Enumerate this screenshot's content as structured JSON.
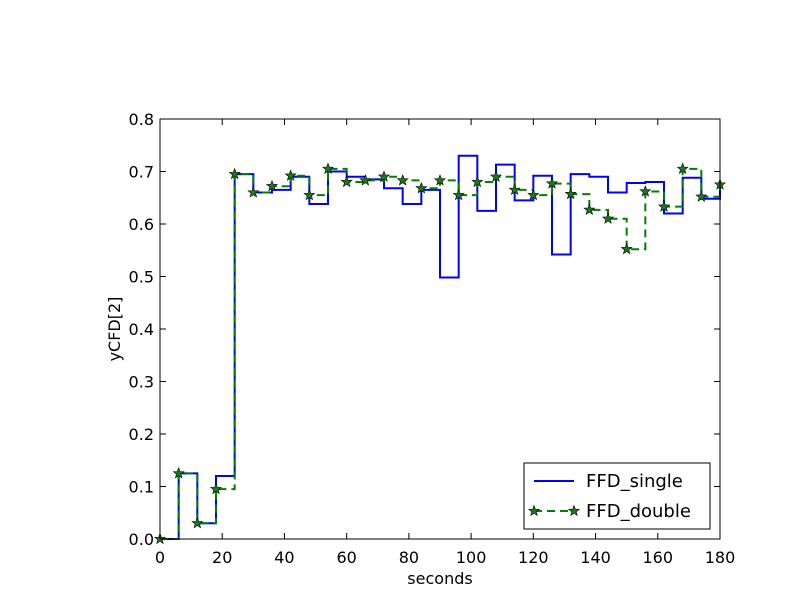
{
  "chart_data": {
    "type": "line",
    "drawstyle": "steps-post",
    "xlabel": "seconds",
    "ylabel": "yCFD[2]",
    "xlim": [
      0,
      180
    ],
    "ylim": [
      0.0,
      0.8
    ],
    "xticks": [
      "0",
      "20",
      "40",
      "60",
      "80",
      "100",
      "120",
      "140",
      "160",
      "180"
    ],
    "yticks": [
      "0.0",
      "0.1",
      "0.2",
      "0.3",
      "0.4",
      "0.5",
      "0.6",
      "0.7",
      "0.8"
    ],
    "grid": false,
    "legend_position": "lower-right",
    "x": [
      0,
      6,
      12,
      18,
      24,
      30,
      36,
      42,
      48,
      54,
      60,
      66,
      72,
      78,
      84,
      90,
      96,
      102,
      108,
      114,
      120,
      126,
      132,
      138,
      144,
      150,
      156,
      162,
      168,
      174,
      180
    ],
    "series": [
      {
        "name": "FFD_single",
        "color": "#0000ff",
        "linestyle": "solid",
        "marker": "none",
        "values": [
          0.0,
          0.125,
          0.03,
          0.12,
          0.695,
          0.66,
          0.665,
          0.69,
          0.638,
          0.7,
          0.69,
          0.685,
          0.668,
          0.638,
          0.665,
          0.498,
          0.73,
          0.625,
          0.713,
          0.645,
          0.692,
          0.542,
          0.695,
          0.69,
          0.66,
          0.678,
          0.68,
          0.62,
          0.688,
          0.648,
          0.675
        ]
      },
      {
        "name": "FFD_double",
        "color": "#008000",
        "linestyle": "dashed",
        "marker": "star",
        "values": [
          0.0,
          0.125,
          0.03,
          0.095,
          0.695,
          0.66,
          0.672,
          0.692,
          0.655,
          0.705,
          0.68,
          0.683,
          0.69,
          0.683,
          0.668,
          0.683,
          0.655,
          0.68,
          0.69,
          0.665,
          0.655,
          0.677,
          0.657,
          0.627,
          0.61,
          0.552,
          0.662,
          0.633,
          0.705,
          0.652,
          0.675
        ]
      }
    ]
  }
}
